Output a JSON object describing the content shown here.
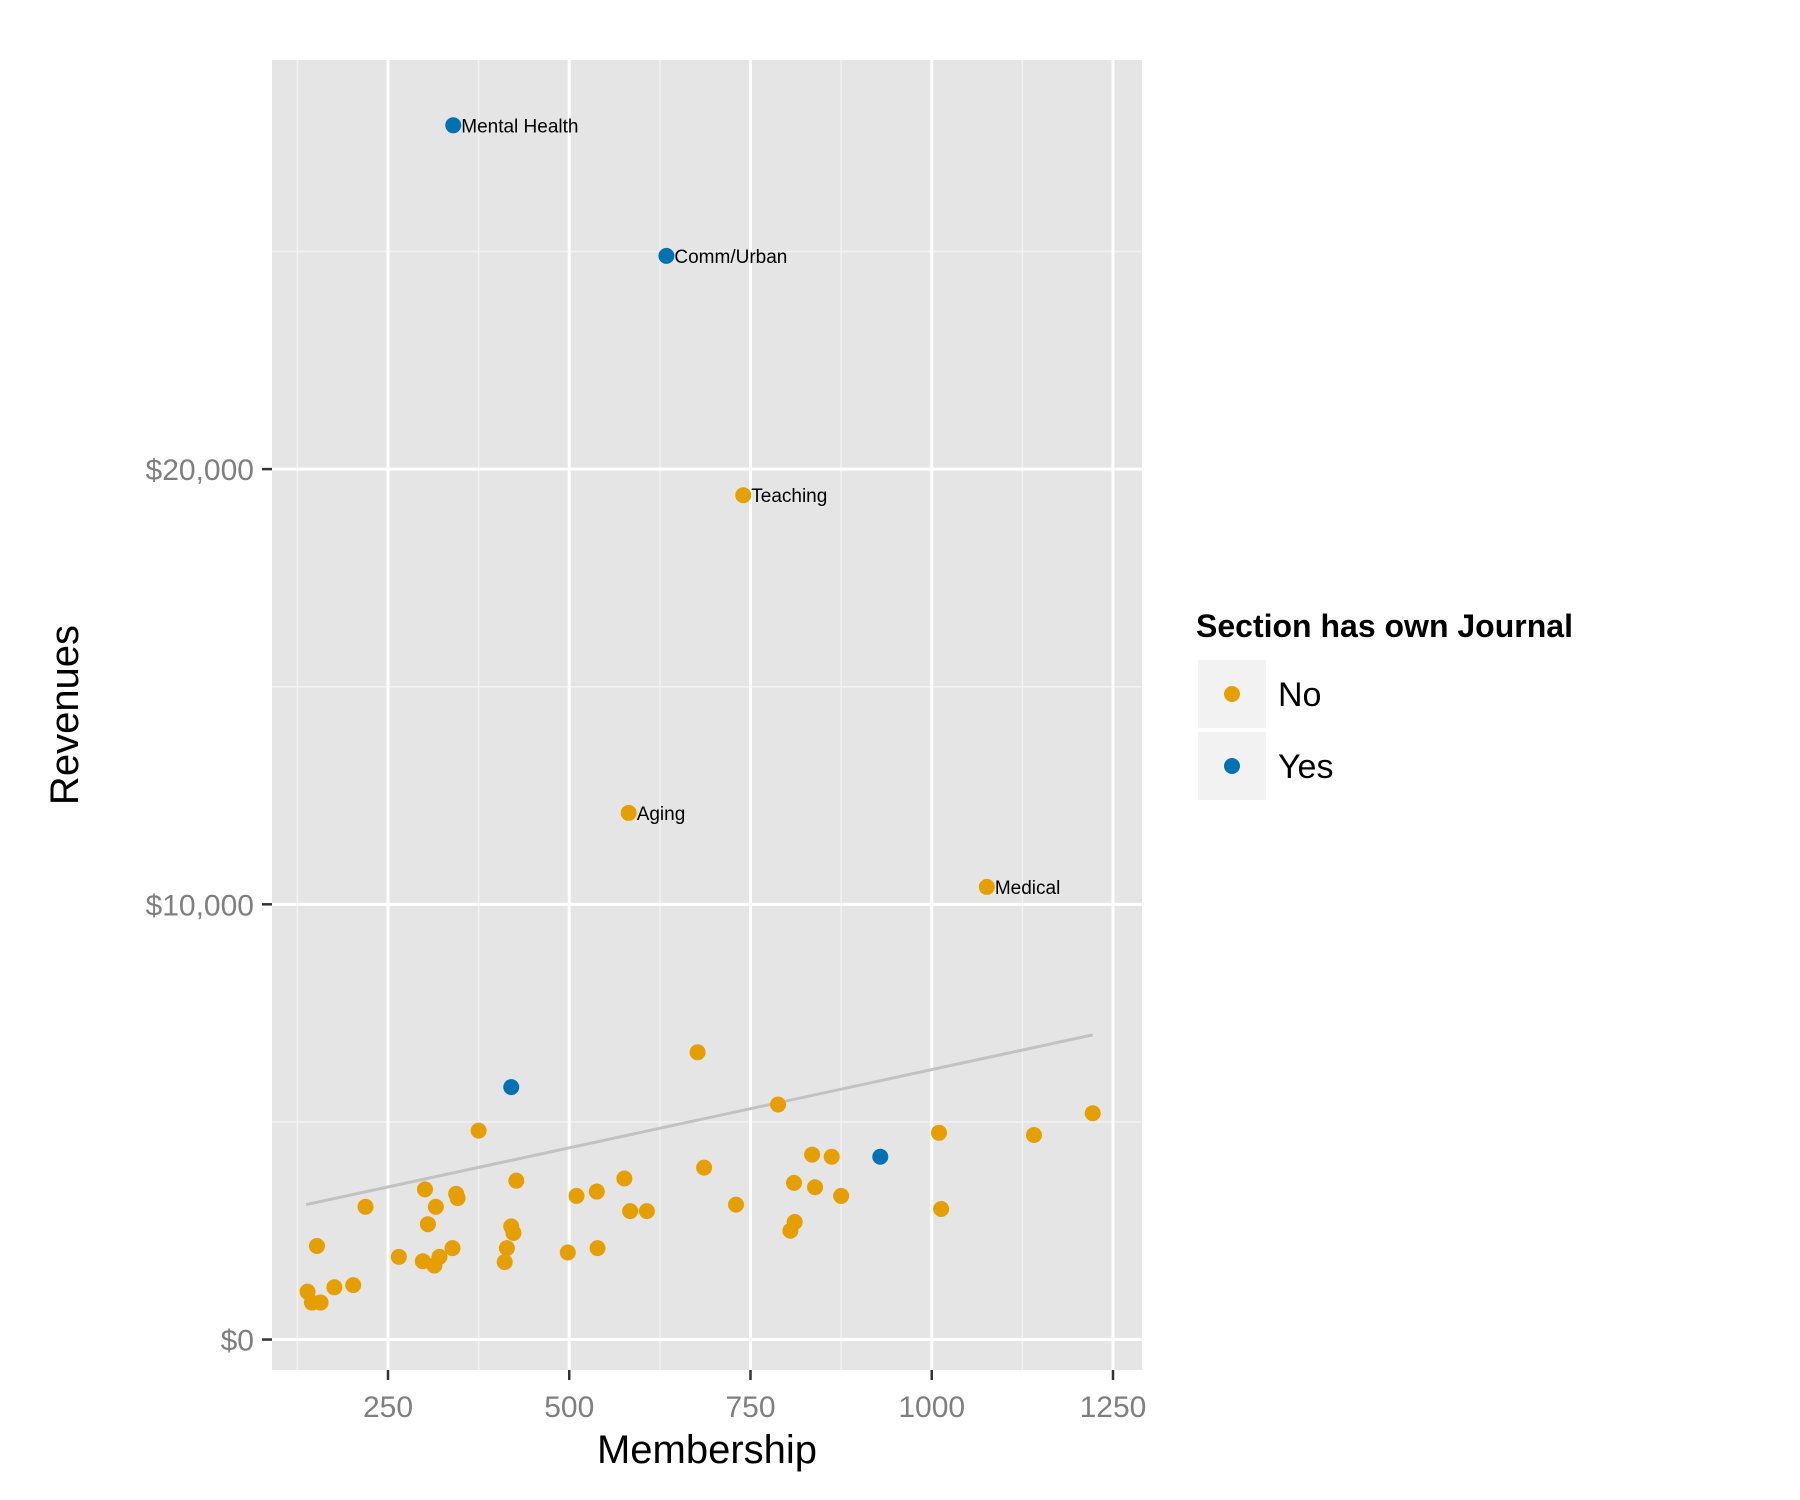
{
  "chart_data": {
    "type": "scatter",
    "title": "",
    "xlabel": "Membership",
    "ylabel": "Revenues",
    "xlim": [
      90,
      1290
    ],
    "ylim": [
      -700,
      29400
    ],
    "x_ticks": [
      250,
      500,
      750,
      1000,
      1250
    ],
    "y_ticks": [
      0,
      10000,
      20000
    ],
    "y_tick_labels": [
      "$0",
      "$10,000",
      "$20,000"
    ],
    "grid": true,
    "legend": {
      "title": "Section has own Journal",
      "position": "right",
      "entries": [
        "No",
        "Yes"
      ]
    },
    "colors": {
      "No": "#E69F00",
      "Yes": "#0072B2",
      "panel": "#e5e5e5",
      "grid": "#ffffff",
      "trend": "#c2c2c2"
    },
    "trend_line": {
      "x": [
        137,
        1222
      ],
      "y": [
        3100,
        7000
      ]
    },
    "series": [
      {
        "name": "No",
        "points": [
          [
            740,
            19400,
            "Teaching"
          ],
          [
            582,
            12100,
            "Aging"
          ],
          [
            1076,
            10400,
            "Medical"
          ],
          [
            677,
            6600,
            ""
          ],
          [
            788,
            5400,
            ""
          ],
          [
            1222,
            5200,
            ""
          ],
          [
            1010,
            4750,
            ""
          ],
          [
            1141,
            4700,
            ""
          ],
          [
            375,
            4800,
            ""
          ],
          [
            835,
            4250,
            ""
          ],
          [
            862,
            4200,
            ""
          ],
          [
            686,
            3950,
            ""
          ],
          [
            427,
            3650,
            ""
          ],
          [
            576,
            3700,
            ""
          ],
          [
            810,
            3600,
            ""
          ],
          [
            839,
            3500,
            ""
          ],
          [
            301,
            3450,
            ""
          ],
          [
            538,
            3400,
            ""
          ],
          [
            344,
            3350,
            ""
          ],
          [
            510,
            3300,
            ""
          ],
          [
            875,
            3300,
            ""
          ],
          [
            346,
            3250,
            ""
          ],
          [
            730,
            3100,
            ""
          ],
          [
            219,
            3050,
            ""
          ],
          [
            316,
            3050,
            ""
          ],
          [
            1013,
            3000,
            ""
          ],
          [
            584,
            2950,
            ""
          ],
          [
            607,
            2950,
            ""
          ],
          [
            811,
            2700,
            ""
          ],
          [
            305,
            2650,
            ""
          ],
          [
            420,
            2600,
            ""
          ],
          [
            805,
            2500,
            ""
          ],
          [
            423,
            2450,
            ""
          ],
          [
            152,
            2150,
            ""
          ],
          [
            414,
            2100,
            ""
          ],
          [
            339,
            2100,
            ""
          ],
          [
            539,
            2100,
            ""
          ],
          [
            498,
            2000,
            ""
          ],
          [
            265,
            1900,
            ""
          ],
          [
            321,
            1900,
            ""
          ],
          [
            298,
            1800,
            ""
          ],
          [
            411,
            1780,
            ""
          ],
          [
            314,
            1700,
            ""
          ],
          [
            176,
            1200,
            ""
          ],
          [
            202,
            1250,
            ""
          ],
          [
            139,
            1100,
            ""
          ],
          [
            145,
            850,
            ""
          ],
          [
            157,
            850,
            ""
          ]
        ]
      },
      {
        "name": "Yes",
        "points": [
          [
            340,
            27900,
            "Mental Health"
          ],
          [
            634,
            24900,
            "Comm/Urban"
          ],
          [
            420,
            5800,
            ""
          ],
          [
            929,
            4200,
            ""
          ]
        ]
      }
    ]
  }
}
